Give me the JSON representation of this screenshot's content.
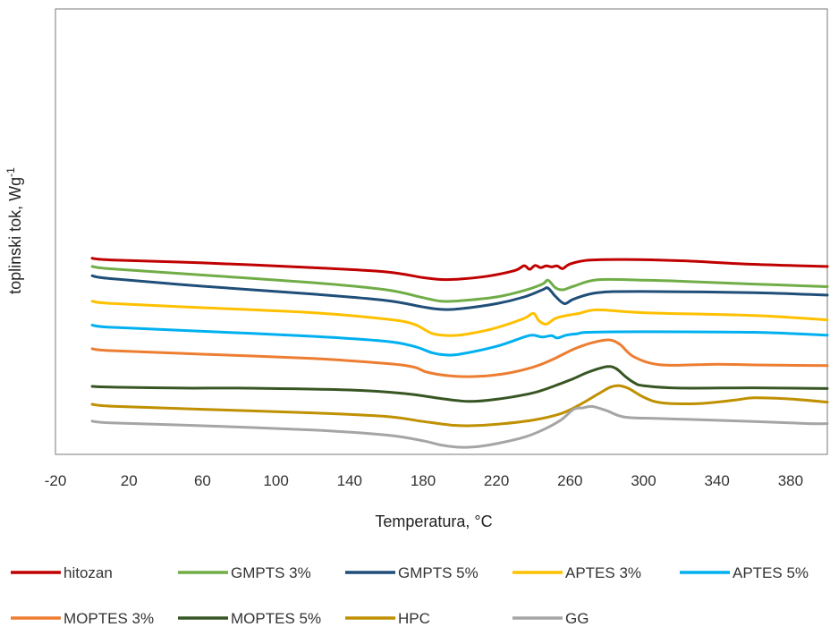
{
  "chart_data": {
    "type": "line",
    "xlabel": "Temperatura, °C",
    "ylabel_main": "toplinski tok, Wg",
    "ylabel_sup": "-1",
    "xlim": [
      -20,
      400
    ],
    "x_ticks": [
      "-20",
      "20",
      "60",
      "100",
      "140",
      "180",
      "220",
      "260",
      "300",
      "340",
      "380"
    ],
    "y_ticks_shown": false,
    "grid": false,
    "legend_position": "bottom",
    "series": [
      {
        "name": "hitozan",
        "color": "#C00000",
        "x": [
          0,
          10,
          60,
          120,
          160,
          180,
          190,
          200,
          215,
          230,
          235,
          238,
          241,
          244,
          247,
          250,
          253,
          256,
          260,
          270,
          290,
          320,
          360,
          400
        ],
        "y": [
          94.5,
          93.4,
          91.3,
          88.0,
          85.0,
          81.0,
          79.7,
          80.0,
          82.0,
          86.0,
          89.3,
          86.8,
          89.5,
          88.0,
          89.2,
          88.5,
          89.2,
          87.3,
          90.5,
          93.2,
          93.7,
          92.8,
          90.3,
          88.8
        ]
      },
      {
        "name": "GMPTS 3%",
        "color": "#70AD47",
        "x": [
          0,
          10,
          60,
          120,
          160,
          180,
          190,
          200,
          220,
          235,
          245,
          248,
          252,
          256,
          262,
          275,
          300,
          320,
          360,
          400
        ],
        "y": [
          88.8,
          87.2,
          82.8,
          77.5,
          72.5,
          67.0,
          64.5,
          64.8,
          67.5,
          72.0,
          76.5,
          79.2,
          74.0,
          72.5,
          75.0,
          79.5,
          79.2,
          78.5,
          76.5,
          74.7
        ]
      },
      {
        "name": "GMPTS 5%",
        "color": "#1F4E79",
        "x": [
          0,
          10,
          60,
          120,
          160,
          180,
          190,
          200,
          220,
          235,
          245,
          248,
          252,
          257,
          262,
          275,
          300,
          360,
          400
        ],
        "y": [
          82.3,
          80.3,
          75.0,
          69.5,
          65.0,
          60.5,
          58.8,
          59.2,
          62.8,
          67.5,
          72.5,
          73.7,
          68.0,
          62.8,
          66.0,
          70.5,
          71.3,
          70.5,
          68.8
        ]
      },
      {
        "name": "APTES 3%",
        "color": "#FFC000",
        "x": [
          0,
          10,
          60,
          120,
          160,
          175,
          185,
          195,
          205,
          220,
          235,
          240,
          243,
          247,
          252,
          258,
          265,
          275,
          300,
          360,
          400
        ],
        "y": [
          64.5,
          63.0,
          60.0,
          56.5,
          52.0,
          48.5,
          42.0,
          40.5,
          41.8,
          46.0,
          52.5,
          56.0,
          51.0,
          48.5,
          52.5,
          54.5,
          56.0,
          58.5,
          56.5,
          54.5,
          51.5
        ]
      },
      {
        "name": "APTES 5%",
        "color": "#00B0F0",
        "x": [
          0,
          10,
          60,
          120,
          160,
          175,
          185,
          192,
          200,
          220,
          235,
          240,
          245,
          250,
          253,
          258,
          264,
          270,
          300,
          360,
          400
        ],
        "y": [
          47.8,
          46.3,
          43.5,
          40.0,
          36.5,
          33.0,
          28.5,
          27.0,
          27.5,
          33.0,
          39.5,
          40.8,
          39.5,
          40.5,
          38.8,
          40.8,
          41.8,
          42.8,
          43.2,
          42.8,
          40.8
        ]
      },
      {
        "name": "MOPTES 3%",
        "color": "#ED7D31",
        "x": [
          0,
          10,
          60,
          120,
          160,
          175,
          182,
          195,
          210,
          225,
          240,
          250,
          262,
          272,
          281,
          287,
          295,
          310,
          340,
          360,
          400
        ],
        "y": [
          31.3,
          30.0,
          27.5,
          24.5,
          21.0,
          18.5,
          15.0,
          12.3,
          12.0,
          14.0,
          18.5,
          23.5,
          31.0,
          35.5,
          37.5,
          34.5,
          25.5,
          20.0,
          20.5,
          20.0,
          19.5
        ]
      },
      {
        "name": "MOPTES 5%",
        "color": "#375623",
        "x": [
          0,
          10,
          50,
          80,
          140,
          170,
          190,
          205,
          220,
          240,
          255,
          262,
          270,
          280,
          285,
          290,
          295,
          300,
          320,
          360,
          400
        ],
        "y": [
          5.0,
          4.5,
          3.8,
          3.8,
          2.5,
          0.0,
          -3.5,
          -5.5,
          -4.0,
          0.5,
          7.0,
          10.5,
          15.0,
          18.8,
          17.5,
          12.0,
          7.5,
          5.5,
          3.8,
          4.0,
          3.5
        ]
      },
      {
        "name": "HPC",
        "color": "#BF9000",
        "x": [
          0,
          10,
          60,
          120,
          160,
          180,
          195,
          205,
          220,
          240,
          255,
          265,
          275,
          282,
          287,
          292,
          300,
          310,
          330,
          350,
          360,
          380,
          400
        ],
        "y": [
          -7.5,
          -8.8,
          -11.0,
          -13.5,
          -16.0,
          -19.5,
          -22.0,
          -22.5,
          -21.5,
          -18.5,
          -14.0,
          -8.0,
          -0.5,
          4.5,
          5.5,
          3.5,
          -2.5,
          -6.5,
          -7.0,
          -4.5,
          -3.0,
          -3.8,
          -6.0
        ]
      },
      {
        "name": "GG",
        "color": "#A5A5A5",
        "x": [
          0,
          10,
          60,
          120,
          160,
          180,
          190,
          200,
          210,
          220,
          235,
          245,
          255,
          262,
          267,
          272,
          280,
          290,
          310,
          360,
          390,
          400
        ],
        "y": [
          -19.3,
          -20.5,
          -22.5,
          -25.5,
          -29.0,
          -33.0,
          -36.0,
          -37.5,
          -37.0,
          -35.0,
          -30.5,
          -25.5,
          -18.5,
          -11.0,
          -10.0,
          -9.0,
          -12.0,
          -16.5,
          -17.5,
          -19.5,
          -21.0,
          -21.0
        ]
      }
    ]
  }
}
